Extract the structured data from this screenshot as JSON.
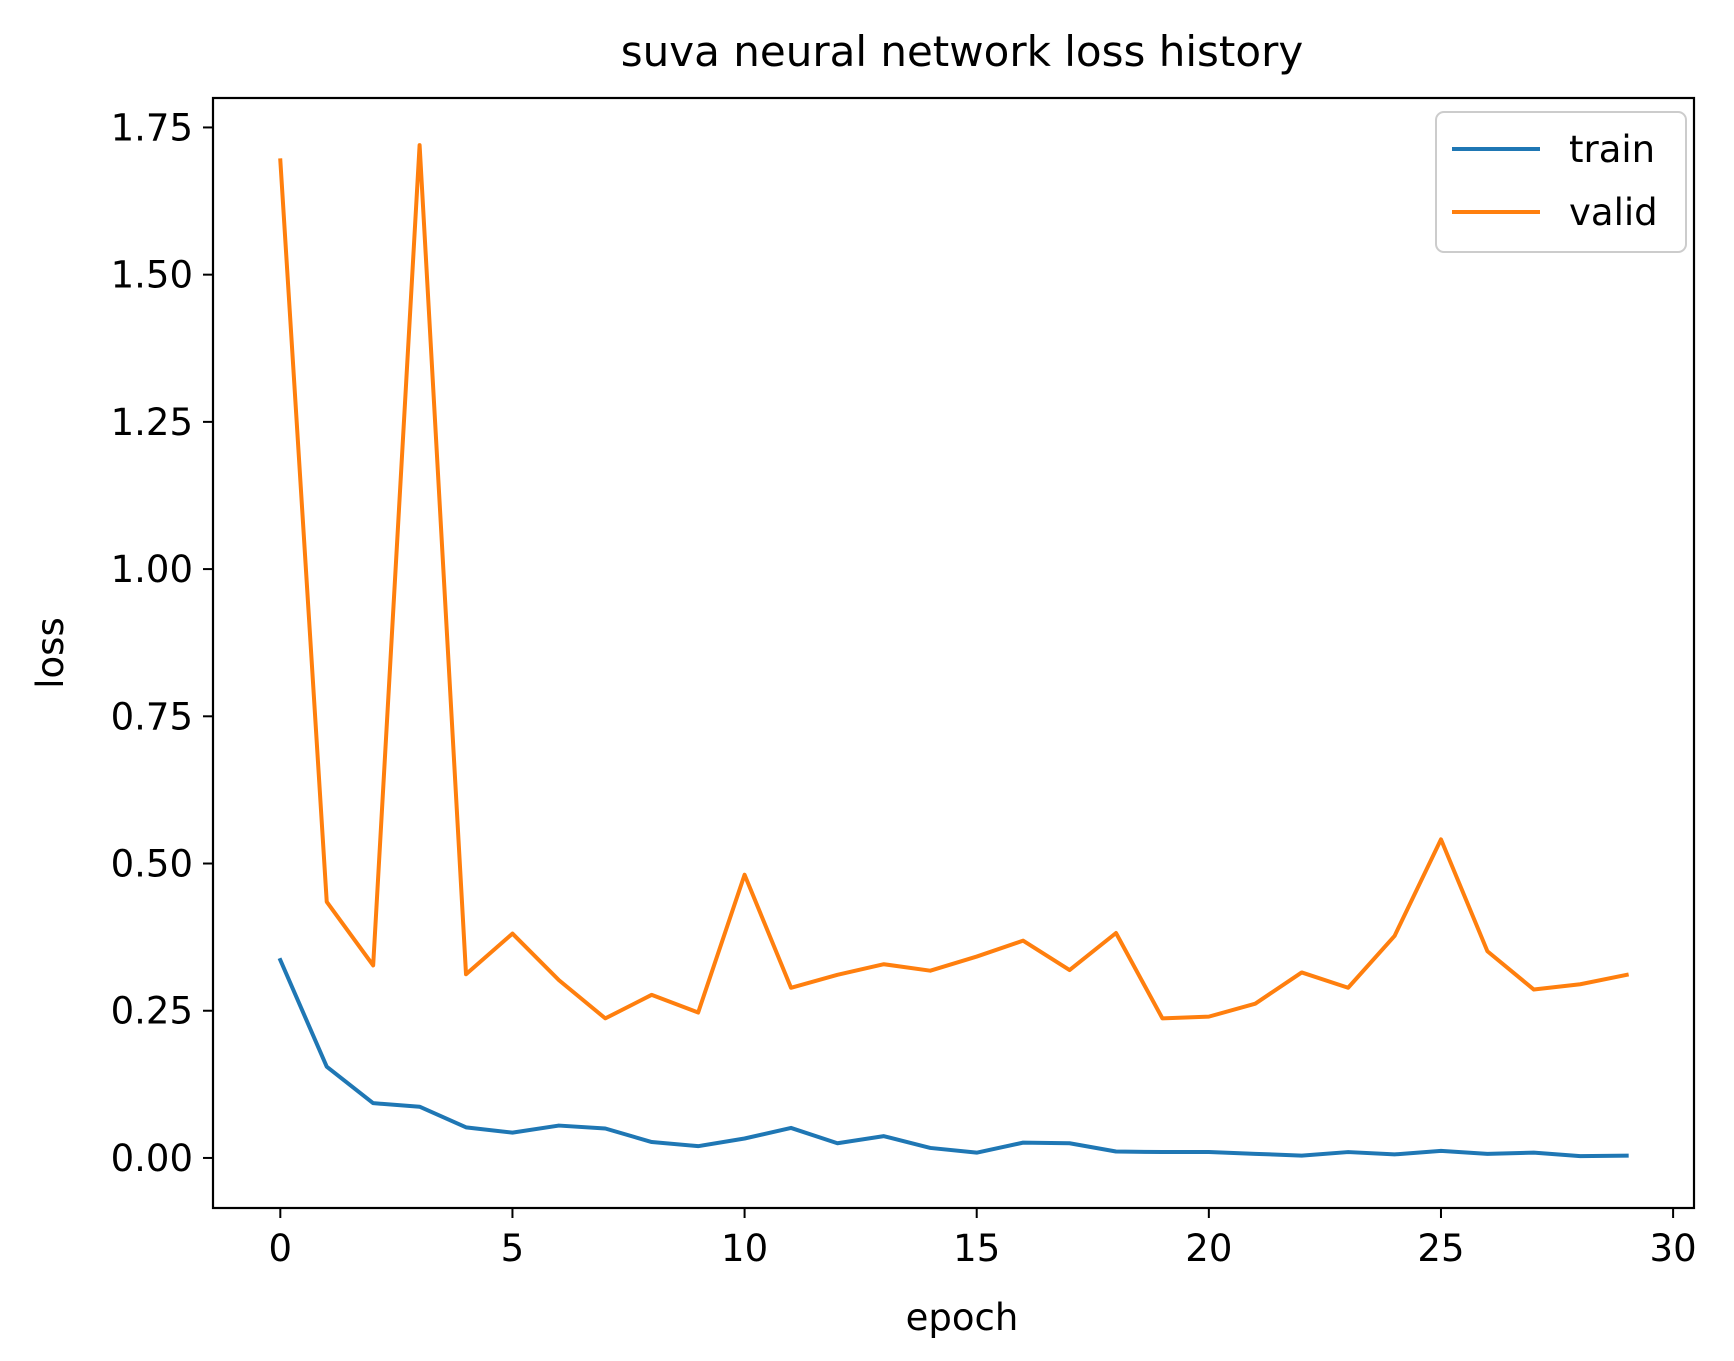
{
  "chart_data": {
    "type": "line",
    "title": "suva neural network loss history",
    "xlabel": "epoch",
    "ylabel": "loss",
    "xlim": [
      -1.45,
      30.45
    ],
    "ylim": [
      -0.085,
      1.8
    ],
    "xticks": [
      0,
      5,
      10,
      15,
      20,
      25,
      30
    ],
    "xtick_labels": [
      "0",
      "5",
      "10",
      "15",
      "20",
      "25",
      "30"
    ],
    "yticks": [
      0.0,
      0.25,
      0.5,
      0.75,
      1.0,
      1.25,
      1.5,
      1.75
    ],
    "ytick_labels": [
      "0.00",
      "0.25",
      "0.50",
      "0.75",
      "1.00",
      "1.25",
      "1.50",
      "1.75"
    ],
    "grid": false,
    "legend_position": "top-right",
    "x": [
      0,
      1,
      2,
      3,
      4,
      5,
      6,
      7,
      8,
      9,
      10,
      11,
      12,
      13,
      14,
      15,
      16,
      17,
      18,
      19,
      20,
      21,
      22,
      23,
      24,
      25,
      26,
      27,
      28,
      29
    ],
    "series": [
      {
        "name": "train",
        "color": "#1f77b4",
        "values": [
          0.336,
          0.155,
          0.093,
          0.087,
          0.052,
          0.043,
          0.055,
          0.05,
          0.027,
          0.02,
          0.033,
          0.051,
          0.025,
          0.037,
          0.017,
          0.009,
          0.026,
          0.025,
          0.011,
          0.01,
          0.01,
          0.007,
          0.004,
          0.01,
          0.006,
          0.012,
          0.007,
          0.009,
          0.003,
          0.004
        ]
      },
      {
        "name": "valid",
        "color": "#ff7f0e",
        "values": [
          1.694,
          0.435,
          0.327,
          1.72,
          0.312,
          0.381,
          0.302,
          0.237,
          0.277,
          0.247,
          0.481,
          0.289,
          0.311,
          0.329,
          0.318,
          0.342,
          0.369,
          0.319,
          0.382,
          0.237,
          0.24,
          0.262,
          0.315,
          0.289,
          0.377,
          0.541,
          0.351,
          0.286,
          0.295,
          0.311
        ]
      }
    ]
  }
}
